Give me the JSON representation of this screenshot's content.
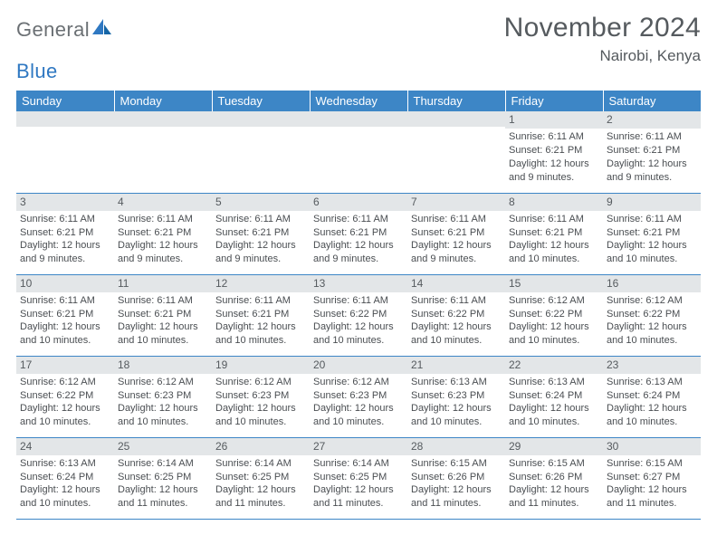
{
  "brand": {
    "part1": "General",
    "part2": "Blue"
  },
  "title": "November 2024",
  "location": "Nairobi, Kenya",
  "colors": {
    "header_bg": "#3d86c6",
    "header_text": "#ffffff",
    "band_bg": "#e3e6e8",
    "text": "#4a4e52",
    "brand_gray": "#6b7074",
    "brand_blue": "#2f78c2",
    "border": "#3d86c6"
  },
  "dayNames": [
    "Sunday",
    "Monday",
    "Tuesday",
    "Wednesday",
    "Thursday",
    "Friday",
    "Saturday"
  ],
  "weeks": [
    [
      {
        "n": "",
        "sr": "",
        "ss": "",
        "dl": ""
      },
      {
        "n": "",
        "sr": "",
        "ss": "",
        "dl": ""
      },
      {
        "n": "",
        "sr": "",
        "ss": "",
        "dl": ""
      },
      {
        "n": "",
        "sr": "",
        "ss": "",
        "dl": ""
      },
      {
        "n": "",
        "sr": "",
        "ss": "",
        "dl": ""
      },
      {
        "n": "1",
        "sr": "Sunrise: 6:11 AM",
        "ss": "Sunset: 6:21 PM",
        "dl": "Daylight: 12 hours and 9 minutes."
      },
      {
        "n": "2",
        "sr": "Sunrise: 6:11 AM",
        "ss": "Sunset: 6:21 PM",
        "dl": "Daylight: 12 hours and 9 minutes."
      }
    ],
    [
      {
        "n": "3",
        "sr": "Sunrise: 6:11 AM",
        "ss": "Sunset: 6:21 PM",
        "dl": "Daylight: 12 hours and 9 minutes."
      },
      {
        "n": "4",
        "sr": "Sunrise: 6:11 AM",
        "ss": "Sunset: 6:21 PM",
        "dl": "Daylight: 12 hours and 9 minutes."
      },
      {
        "n": "5",
        "sr": "Sunrise: 6:11 AM",
        "ss": "Sunset: 6:21 PM",
        "dl": "Daylight: 12 hours and 9 minutes."
      },
      {
        "n": "6",
        "sr": "Sunrise: 6:11 AM",
        "ss": "Sunset: 6:21 PM",
        "dl": "Daylight: 12 hours and 9 minutes."
      },
      {
        "n": "7",
        "sr": "Sunrise: 6:11 AM",
        "ss": "Sunset: 6:21 PM",
        "dl": "Daylight: 12 hours and 9 minutes."
      },
      {
        "n": "8",
        "sr": "Sunrise: 6:11 AM",
        "ss": "Sunset: 6:21 PM",
        "dl": "Daylight: 12 hours and 10 minutes."
      },
      {
        "n": "9",
        "sr": "Sunrise: 6:11 AM",
        "ss": "Sunset: 6:21 PM",
        "dl": "Daylight: 12 hours and 10 minutes."
      }
    ],
    [
      {
        "n": "10",
        "sr": "Sunrise: 6:11 AM",
        "ss": "Sunset: 6:21 PM",
        "dl": "Daylight: 12 hours and 10 minutes."
      },
      {
        "n": "11",
        "sr": "Sunrise: 6:11 AM",
        "ss": "Sunset: 6:21 PM",
        "dl": "Daylight: 12 hours and 10 minutes."
      },
      {
        "n": "12",
        "sr": "Sunrise: 6:11 AM",
        "ss": "Sunset: 6:21 PM",
        "dl": "Daylight: 12 hours and 10 minutes."
      },
      {
        "n": "13",
        "sr": "Sunrise: 6:11 AM",
        "ss": "Sunset: 6:22 PM",
        "dl": "Daylight: 12 hours and 10 minutes."
      },
      {
        "n": "14",
        "sr": "Sunrise: 6:11 AM",
        "ss": "Sunset: 6:22 PM",
        "dl": "Daylight: 12 hours and 10 minutes."
      },
      {
        "n": "15",
        "sr": "Sunrise: 6:12 AM",
        "ss": "Sunset: 6:22 PM",
        "dl": "Daylight: 12 hours and 10 minutes."
      },
      {
        "n": "16",
        "sr": "Sunrise: 6:12 AM",
        "ss": "Sunset: 6:22 PM",
        "dl": "Daylight: 12 hours and 10 minutes."
      }
    ],
    [
      {
        "n": "17",
        "sr": "Sunrise: 6:12 AM",
        "ss": "Sunset: 6:22 PM",
        "dl": "Daylight: 12 hours and 10 minutes."
      },
      {
        "n": "18",
        "sr": "Sunrise: 6:12 AM",
        "ss": "Sunset: 6:23 PM",
        "dl": "Daylight: 12 hours and 10 minutes."
      },
      {
        "n": "19",
        "sr": "Sunrise: 6:12 AM",
        "ss": "Sunset: 6:23 PM",
        "dl": "Daylight: 12 hours and 10 minutes."
      },
      {
        "n": "20",
        "sr": "Sunrise: 6:12 AM",
        "ss": "Sunset: 6:23 PM",
        "dl": "Daylight: 12 hours and 10 minutes."
      },
      {
        "n": "21",
        "sr": "Sunrise: 6:13 AM",
        "ss": "Sunset: 6:23 PM",
        "dl": "Daylight: 12 hours and 10 minutes."
      },
      {
        "n": "22",
        "sr": "Sunrise: 6:13 AM",
        "ss": "Sunset: 6:24 PM",
        "dl": "Daylight: 12 hours and 10 minutes."
      },
      {
        "n": "23",
        "sr": "Sunrise: 6:13 AM",
        "ss": "Sunset: 6:24 PM",
        "dl": "Daylight: 12 hours and 10 minutes."
      }
    ],
    [
      {
        "n": "24",
        "sr": "Sunrise: 6:13 AM",
        "ss": "Sunset: 6:24 PM",
        "dl": "Daylight: 12 hours and 10 minutes."
      },
      {
        "n": "25",
        "sr": "Sunrise: 6:14 AM",
        "ss": "Sunset: 6:25 PM",
        "dl": "Daylight: 12 hours and 11 minutes."
      },
      {
        "n": "26",
        "sr": "Sunrise: 6:14 AM",
        "ss": "Sunset: 6:25 PM",
        "dl": "Daylight: 12 hours and 11 minutes."
      },
      {
        "n": "27",
        "sr": "Sunrise: 6:14 AM",
        "ss": "Sunset: 6:25 PM",
        "dl": "Daylight: 12 hours and 11 minutes."
      },
      {
        "n": "28",
        "sr": "Sunrise: 6:15 AM",
        "ss": "Sunset: 6:26 PM",
        "dl": "Daylight: 12 hours and 11 minutes."
      },
      {
        "n": "29",
        "sr": "Sunrise: 6:15 AM",
        "ss": "Sunset: 6:26 PM",
        "dl": "Daylight: 12 hours and 11 minutes."
      },
      {
        "n": "30",
        "sr": "Sunrise: 6:15 AM",
        "ss": "Sunset: 6:27 PM",
        "dl": "Daylight: 12 hours and 11 minutes."
      }
    ]
  ]
}
